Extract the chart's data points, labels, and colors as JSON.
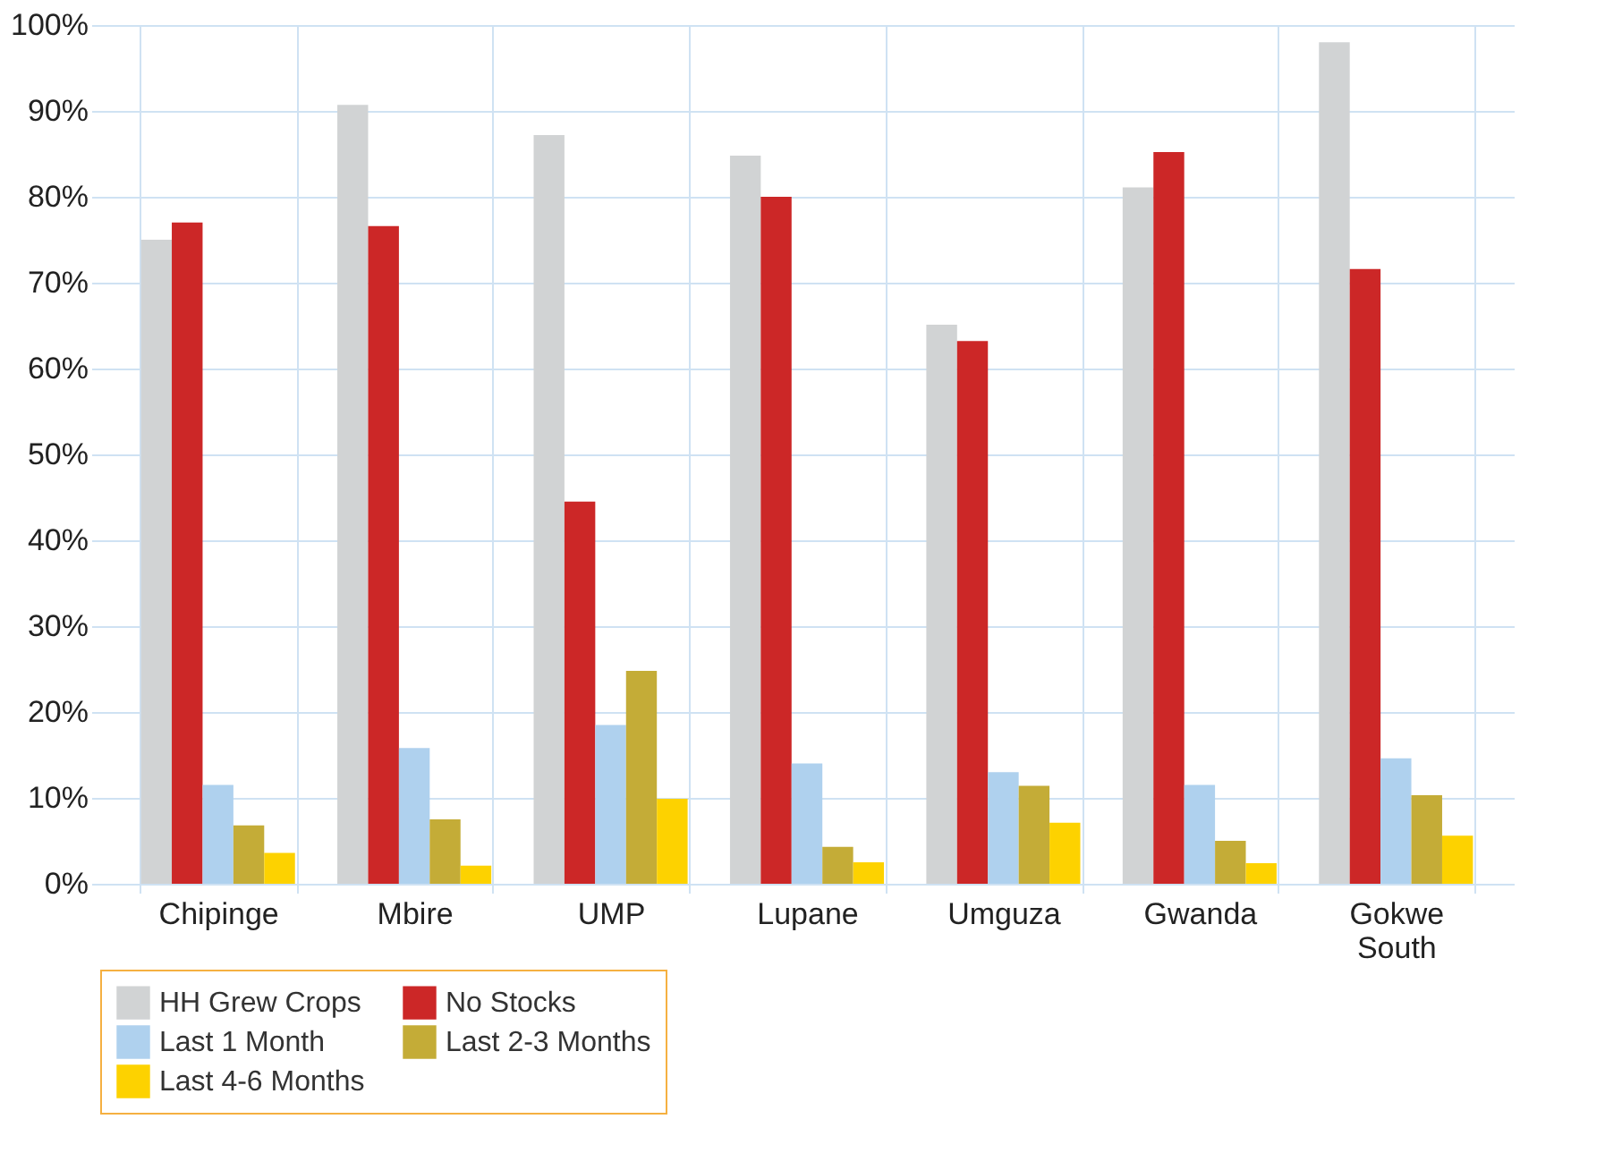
{
  "chart_data": {
    "type": "bar",
    "categories": [
      "Chipinge",
      "Mbire",
      "UMP",
      "Lupane",
      "Umguza",
      "Gwanda",
      "Gokwe South"
    ],
    "series": [
      {
        "name": "HH Grew Crops",
        "color": "#d1d3d4",
        "values": [
          75,
          90.7,
          87.2,
          84.8,
          65.1,
          81.1,
          98
        ]
      },
      {
        "name": "No Stocks",
        "color": "#cc2727",
        "values": [
          77,
          76.6,
          44.5,
          80,
          63.2,
          85.2,
          71.6
        ]
      },
      {
        "name": "Last 1 Month",
        "color": "#afd1ee",
        "values": [
          11.5,
          15.8,
          18.5,
          14,
          13,
          11.5,
          14.6
        ]
      },
      {
        "name": "Last 2-3 Months",
        "color": "#c4ac37",
        "values": [
          6.8,
          7.5,
          24.8,
          4.3,
          11.4,
          5,
          10.3
        ]
      },
      {
        "name": "Last 4-6 Months",
        "color": "#fdd200",
        "values": [
          3.6,
          2.1,
          9.9,
          2.5,
          7.1,
          2.4,
          5.6
        ]
      }
    ],
    "ylim": [
      0,
      100
    ],
    "yticks": [
      {
        "value": 0,
        "label": "0%"
      },
      {
        "value": 10,
        "label": "10%"
      },
      {
        "value": 20,
        "label": "20%"
      },
      {
        "value": 30,
        "label": "30%"
      },
      {
        "value": 40,
        "label": "40%"
      },
      {
        "value": 50,
        "label": "50%"
      },
      {
        "value": 60,
        "label": "60%"
      },
      {
        "value": 70,
        "label": "70%"
      },
      {
        "value": 80,
        "label": "80%"
      },
      {
        "value": 90,
        "label": "90%"
      },
      {
        "value": 100,
        "label": "100%"
      }
    ],
    "grid": true,
    "legend": "bottom"
  }
}
